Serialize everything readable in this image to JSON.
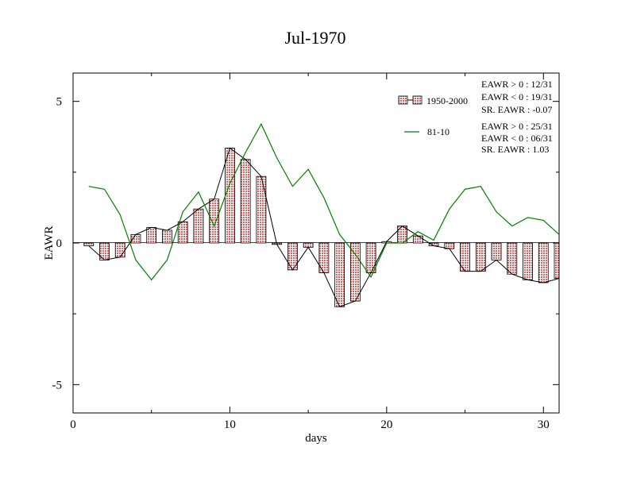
{
  "chart_data": {
    "type": "bar",
    "title": "Jul-1970",
    "xlabel": "days",
    "ylabel": "EAWR",
    "xlim": [
      0,
      31
    ],
    "ylim": [
      -6,
      6
    ],
    "xticks": [
      0,
      10,
      20,
      30
    ],
    "yticks": [
      -5,
      0,
      5
    ],
    "xtick_labels": [
      "0",
      "10",
      "20",
      "30"
    ],
    "ytick_labels": [
      "-5",
      "0",
      "5"
    ],
    "grid": false,
    "legend_position": "top-right",
    "x": [
      1,
      2,
      3,
      4,
      5,
      6,
      7,
      8,
      9,
      10,
      11,
      12,
      13,
      14,
      15,
      16,
      17,
      18,
      19,
      20,
      21,
      22,
      23,
      24,
      25,
      26,
      27,
      28,
      29,
      30,
      31
    ],
    "series": [
      {
        "name": "1950-2000",
        "kind": "bar",
        "color": "#e87070",
        "values": [
          -0.1,
          -0.6,
          -0.5,
          0.3,
          0.55,
          0.45,
          0.75,
          1.2,
          1.55,
          3.35,
          2.95,
          2.35,
          -0.05,
          -0.95,
          -0.15,
          -1.05,
          -2.25,
          -2.05,
          -1.05,
          0.05,
          0.6,
          0.25,
          -0.1,
          -0.2,
          -1.0,
          -1.0,
          -0.6,
          -1.1,
          -1.3,
          -1.4,
          -1.25
        ]
      },
      {
        "name": "81-10",
        "kind": "line",
        "color": "#008000",
        "values": [
          2.0,
          1.9,
          1.0,
          -0.6,
          -1.3,
          -0.6,
          1.1,
          1.8,
          0.6,
          2.1,
          3.2,
          4.2,
          3.0,
          2.0,
          2.6,
          1.6,
          0.3,
          -0.4,
          -1.2,
          0.0,
          0.0,
          0.4,
          0.1,
          1.2,
          1.9,
          2.0,
          1.1,
          0.6,
          0.9,
          0.8,
          0.3
        ]
      }
    ],
    "stats_bars": [
      "EAWR > 0 : 12/31",
      "EAWR < 0 : 19/31",
      "SR. EAWR : -0.07"
    ],
    "stats_line": [
      "EAWR > 0 : 25/31",
      "EAWR < 0 : 06/31",
      "SR. EAWR :  1.03"
    ]
  }
}
